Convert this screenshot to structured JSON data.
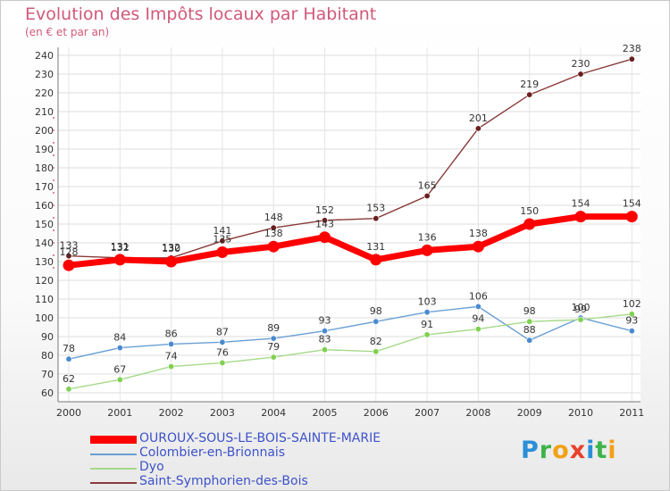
{
  "header": {
    "title": "Evolution des Impôts locaux par Habitant",
    "subtitle": "(en € et par an)"
  },
  "brand": {
    "letters": [
      "P",
      "r",
      "o",
      "x",
      "i",
      "t",
      "i"
    ],
    "colors": [
      "#2b8fd8",
      "#3cb44a",
      "#f2a116",
      "#e8412c",
      "#2b8fd8",
      "#3cb44a",
      "#f2a116"
    ]
  },
  "chart_data": {
    "type": "line",
    "title": "Evolution des Impôts locaux par Habitant",
    "subtitle": "(en € et par an)",
    "x": [
      "2000",
      "2001",
      "2002",
      "2003",
      "2004",
      "2005",
      "2006",
      "2007",
      "2008",
      "2009",
      "2010",
      "2011"
    ],
    "ylim": [
      60,
      240
    ],
    "yticks": [
      60,
      70,
      80,
      90,
      100,
      110,
      120,
      130,
      140,
      150,
      160,
      170,
      180,
      190,
      200,
      210,
      220,
      230,
      240
    ],
    "grid": true,
    "legend_position": "bottom-left",
    "series": [
      {
        "name": "OUROUX-SOUS-LE-BOIS-SAINTE-MARIE",
        "values": [
          128,
          131,
          130,
          135,
          138,
          143,
          131,
          136,
          138,
          150,
          154,
          154
        ],
        "color": "#ff0000",
        "thick": true
      },
      {
        "name": "Colombier-en-Brionnais",
        "values": [
          78,
          84,
          86,
          87,
          89,
          93,
          98,
          103,
          106,
          88,
          100,
          93
        ],
        "color": "#6a9fd4",
        "marker": "#4a8ad0"
      },
      {
        "name": "Dyo",
        "values": [
          62,
          67,
          74,
          76,
          79,
          83,
          82,
          91,
          94,
          98,
          99,
          102
        ],
        "color": "#a6d98a",
        "marker": "#7fd150"
      },
      {
        "name": "Saint-Symphorien-des-Bois",
        "values": [
          133,
          132,
          132,
          141,
          148,
          152,
          153,
          165,
          201,
          219,
          230,
          238
        ],
        "color": "#8a3a3a",
        "marker": "#6a1e1e"
      }
    ]
  }
}
